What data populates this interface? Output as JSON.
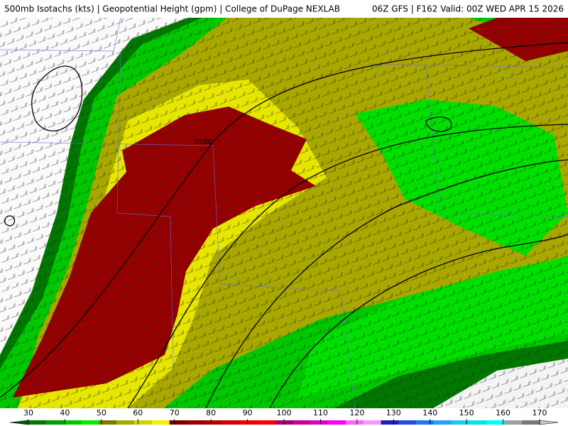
{
  "header": {
    "left": "500mb Isotachs (kts) | Geopotential Height (gpm) | College of DuPage NEXLAB",
    "right": "06Z GFS | F162 Valid: 00Z WED APR 15 2026"
  },
  "map": {
    "contour_labels": [
      "5580"
    ]
  },
  "colorbar": {
    "ticks": [
      30,
      40,
      50,
      60,
      70,
      80,
      90,
      100,
      110,
      120,
      130,
      140,
      150,
      160,
      170
    ],
    "colors": [
      "#005a00",
      "#007800",
      "#00a000",
      "#00c800",
      "#00f000",
      "#7c7c00",
      "#a8a800",
      "#d2d200",
      "#f0f000",
      "#7a0000",
      "#960000",
      "#b40000",
      "#d20000",
      "#e60000",
      "#ff0000",
      "#a00078",
      "#c800a0",
      "#dc00c8",
      "#ff00ff",
      "#ff64ff",
      "#ff96ff",
      "#1e1eb4",
      "#1e50dc",
      "#1e78f0",
      "#28a0ff",
      "#1ec8f0",
      "#00e6f0",
      "#00ffff",
      "#a0a0a0",
      "#787878",
      "#c8c8c8"
    ]
  }
}
